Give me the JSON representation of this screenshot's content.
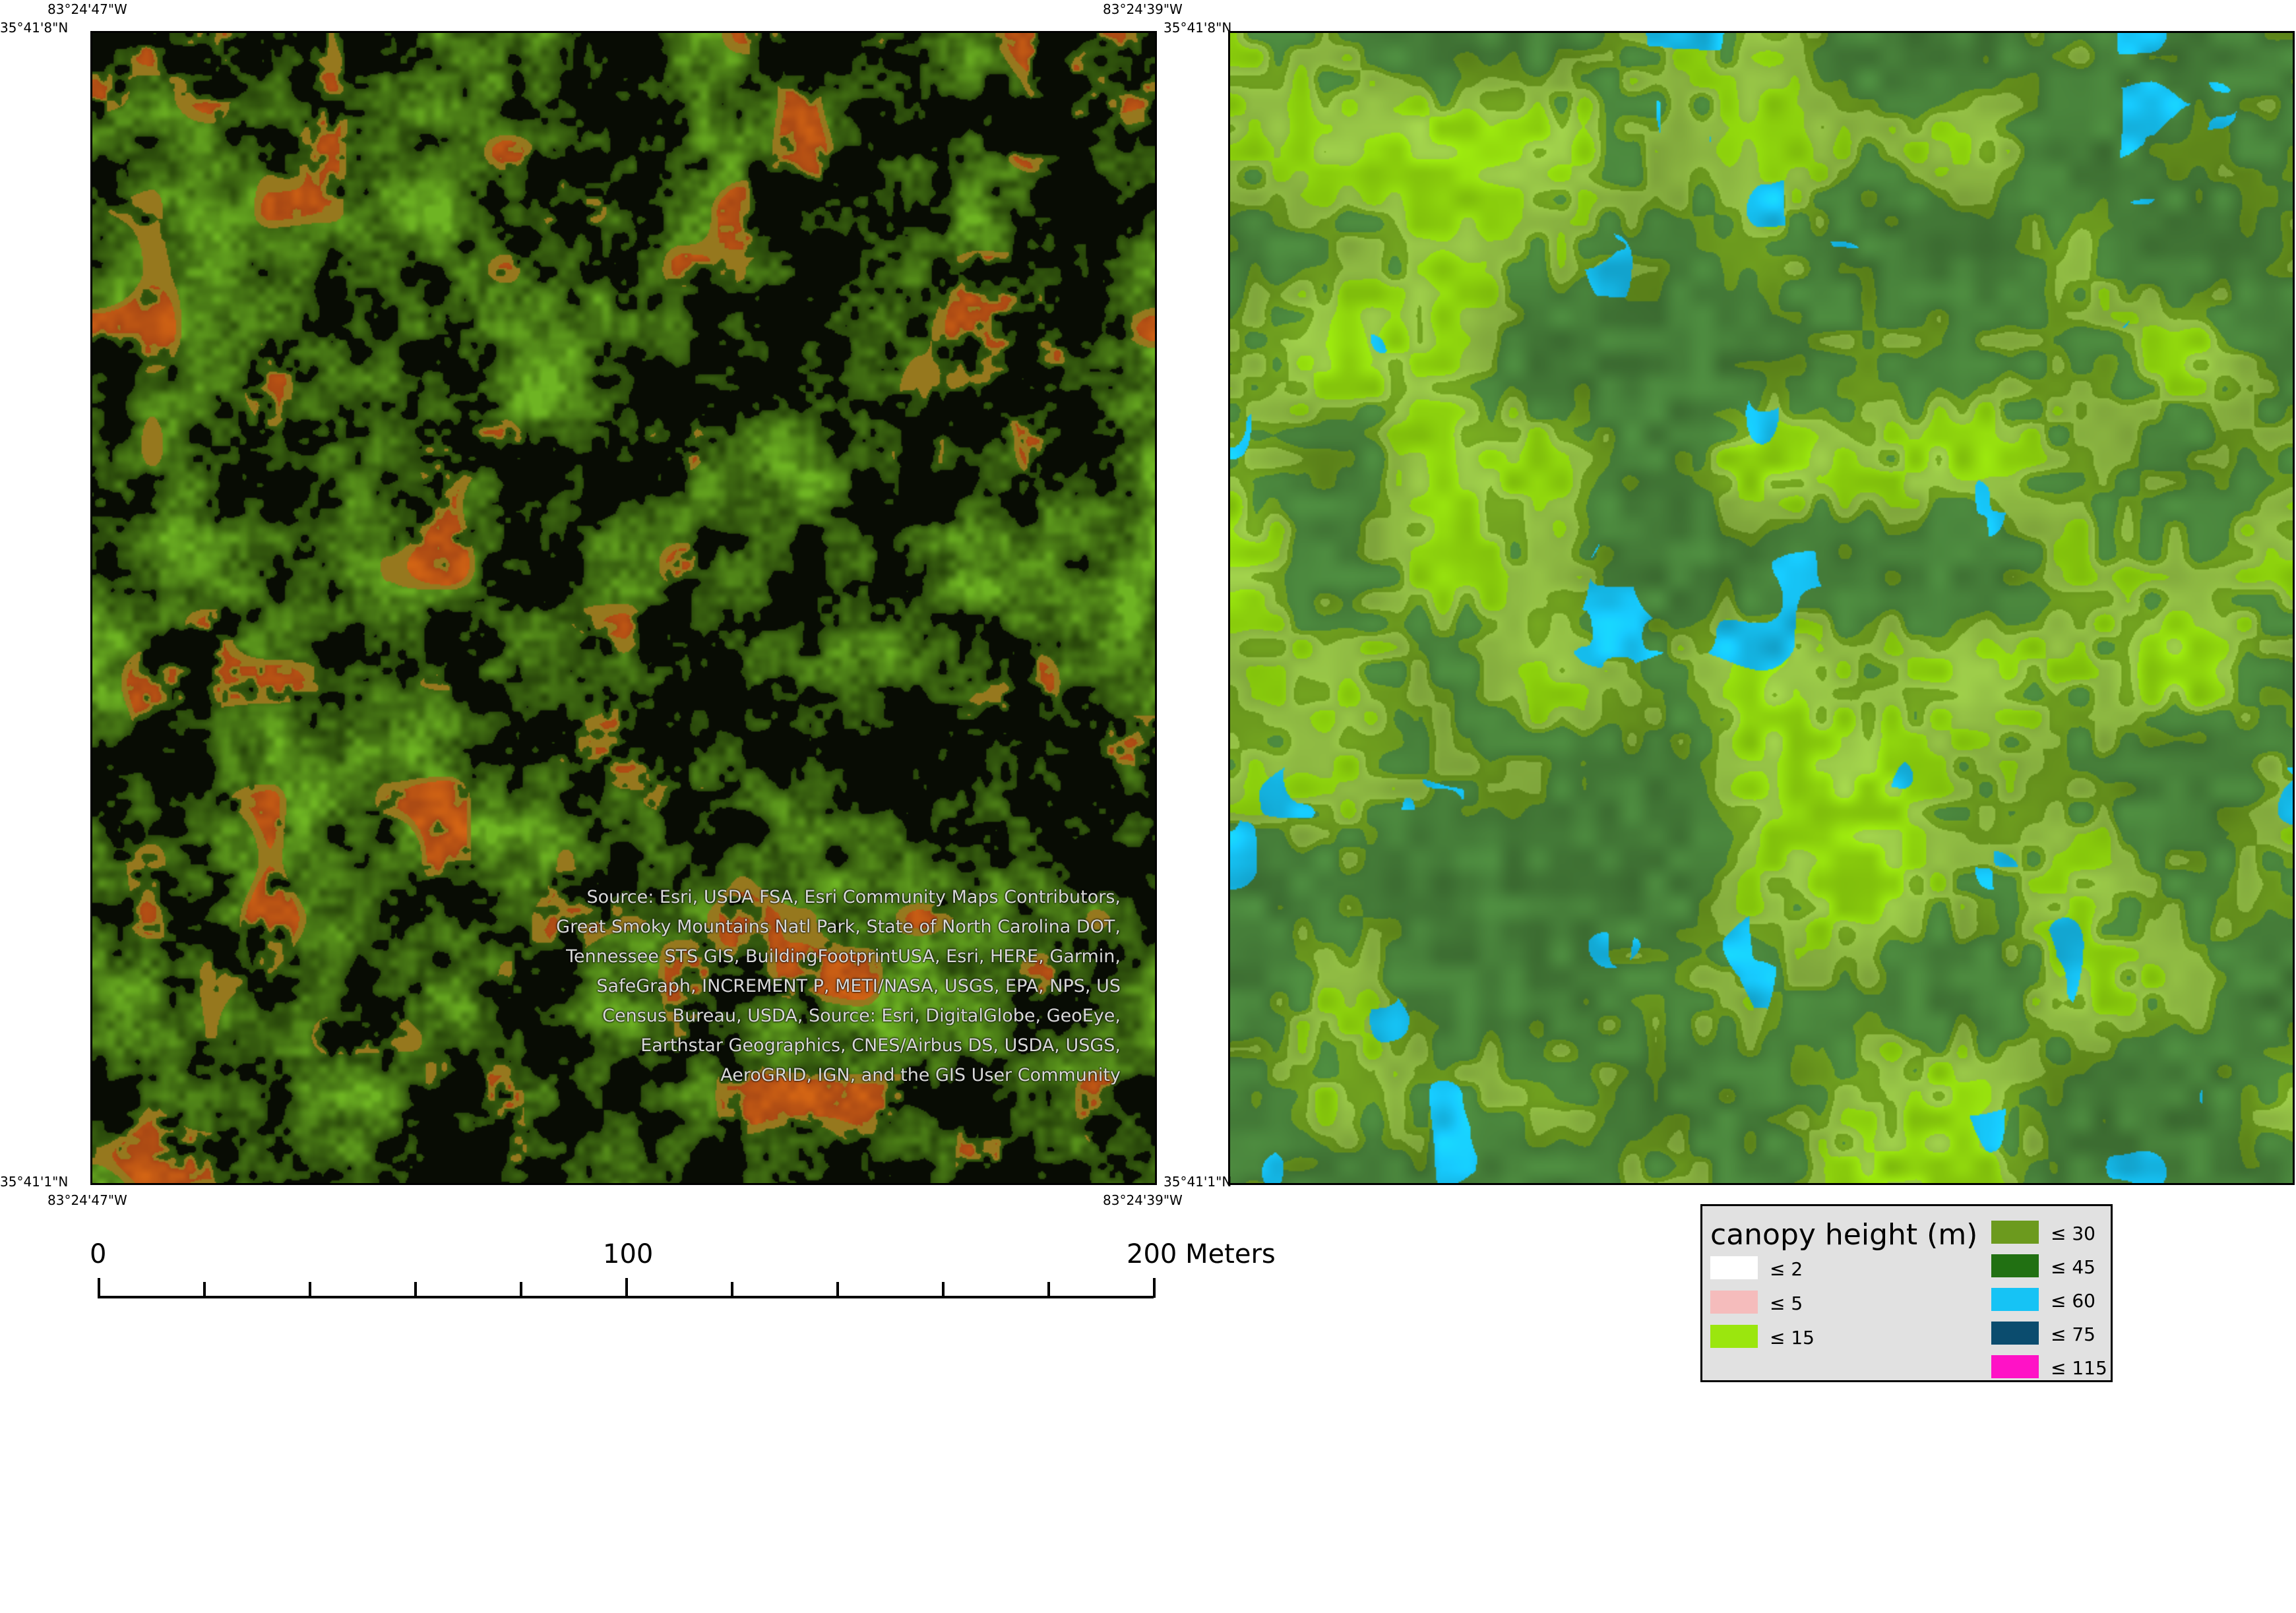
{
  "coordinates": {
    "left_map": {
      "top_left_lon": "83°24'47\"W",
      "top_left_lat": "35°41'8\"N",
      "top_right_lon": "83°24'39\"W",
      "bottom_left_lat": "35°41'1\"N",
      "bottom_left_lon": "83°24'47\"W",
      "bottom_right_lon": "83°24'39\"W"
    },
    "right_map": {
      "top_left_lat": "35°41'8\"N",
      "bottom_left_lat": "35°41'1\"N"
    }
  },
  "attribution": "Source: Esri, USDA FSA, Esri Community Maps Contributors, Great Smoky Mountains Natl Park, State of North Carolina DOT, Tennessee STS GIS, BuildingFootprintUSA, Esri, HERE, Garmin, SafeGraph, INCREMENT P, METI/NASA, USGS, EPA, NPS, US Census Bureau, USDA,  Source: Esri, DigitalGlobe, GeoEye, Earthstar Geographics, CNES/Airbus DS, USDA, USGS, AeroGRID, IGN, and the GIS User Community",
  "scale_bar": {
    "labels": [
      "0",
      "100",
      "200 Meters"
    ],
    "max_value": 200,
    "units": "Meters",
    "divisions": 10
  },
  "legend": {
    "title": "canopy height (m)",
    "items": [
      {
        "label": "≤ 2",
        "color": "#ffffff"
      },
      {
        "label": "≤ 5",
        "color": "#f5bcbc"
      },
      {
        "label": "≤ 15",
        "color": "#9be60e"
      },
      {
        "label": "≤ 30",
        "color": "#6c9a1e"
      },
      {
        "label": "≤ 45",
        "color": "#217012"
      },
      {
        "label": "≤ 60",
        "color": "#16c3f5"
      },
      {
        "label": "≤ 75",
        "color": "#0b4c6e"
      },
      {
        "label": "≤ 115",
        "color": "#ff12c6"
      }
    ]
  },
  "layers": {
    "left": "imagery",
    "right": "canopy-height-raster"
  }
}
